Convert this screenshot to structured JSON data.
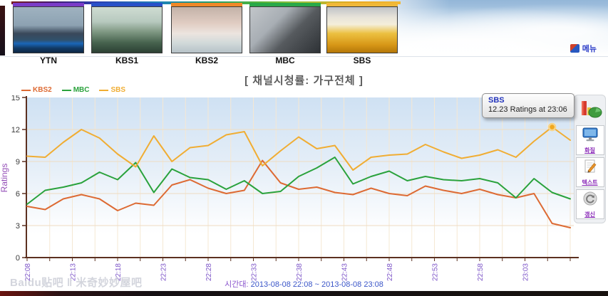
{
  "header": {
    "channels": [
      {
        "name": "YTN",
        "bar_color": "#7a3cc8"
      },
      {
        "name": "KBS1",
        "bar_color": "#2850c8"
      },
      {
        "name": "KBS2",
        "bar_color": "#f08828"
      },
      {
        "name": "MBC",
        "bar_color": "#28a848"
      },
      {
        "name": "SBS",
        "bar_color": "#f0b838"
      }
    ],
    "menu_label": "메뉴"
  },
  "title": "[ 채널시청률: 가구전체 ]",
  "chart_data": {
    "type": "line",
    "title": "채널시청률: 가구전체",
    "xlabel": "",
    "ylabel": "Ratings",
    "ylim": [
      0,
      15
    ],
    "yticks": [
      0,
      3,
      6,
      9,
      12,
      15
    ],
    "grid": true,
    "legend_position": "top-left",
    "x": [
      "22:08",
      "22:10",
      "22:12",
      "22:14",
      "22:16",
      "22:18",
      "22:20",
      "22:22",
      "22:24",
      "22:26",
      "22:28",
      "22:30",
      "22:32",
      "22:34",
      "22:36",
      "22:38",
      "22:40",
      "22:42",
      "22:44",
      "22:46",
      "22:48",
      "22:50",
      "22:52",
      "22:54",
      "22:56",
      "22:58",
      "23:00",
      "23:02",
      "23:04",
      "23:06",
      "23:08"
    ],
    "x_axis_labels": [
      "22:08",
      "22:13",
      "22:18",
      "22:23",
      "22:28",
      "22:33",
      "22:38",
      "22:43",
      "22:48",
      "22:53",
      "22:58",
      "23:03"
    ],
    "series": [
      {
        "name": "KBS2",
        "color": "#dd6a33",
        "values": [
          4.8,
          4.5,
          5.5,
          5.9,
          5.5,
          4.4,
          5.1,
          4.9,
          6.8,
          7.3,
          6.5,
          6.0,
          6.3,
          9.1,
          7.0,
          6.4,
          6.6,
          6.1,
          5.9,
          6.5,
          6.0,
          5.8,
          6.7,
          6.3,
          6.0,
          6.4,
          5.9,
          5.6,
          6.0,
          3.2,
          2.8
        ]
      },
      {
        "name": "MBC",
        "color": "#2aa23c",
        "values": [
          5.0,
          6.3,
          6.6,
          7.0,
          8.0,
          7.3,
          8.9,
          6.1,
          8.3,
          7.5,
          7.3,
          6.4,
          7.2,
          6.0,
          6.2,
          7.6,
          8.4,
          9.4,
          6.9,
          7.6,
          8.1,
          7.2,
          7.6,
          7.3,
          7.2,
          7.4,
          7.0,
          5.6,
          7.4,
          6.1,
          5.5
        ]
      },
      {
        "name": "SBS",
        "color": "#f0ad33",
        "values": [
          9.5,
          9.4,
          10.8,
          12.0,
          11.2,
          9.7,
          8.5,
          11.4,
          9.0,
          10.3,
          10.5,
          11.5,
          11.8,
          8.6,
          10.0,
          11.3,
          10.2,
          10.5,
          8.2,
          9.4,
          9.6,
          9.7,
          10.6,
          9.9,
          9.3,
          9.6,
          10.1,
          9.4,
          10.9,
          12.23,
          11.0
        ]
      }
    ],
    "highlight": {
      "series": "SBS",
      "x": "23:06",
      "value": 12.23
    }
  },
  "tooltip": {
    "channel": "SBS",
    "text": "12.23 Ratings at 23:06"
  },
  "sidebar": {
    "logo_icon": "chart-logo-icon",
    "buttons": [
      {
        "icon": "monitor-icon",
        "label": "화질"
      },
      {
        "icon": "text-icon",
        "label": "텍스트"
      },
      {
        "icon": "refresh-icon",
        "label": "갱신"
      }
    ]
  },
  "footer": {
    "time_range_label": "시간대:",
    "time_range_value": "2013-08-08 22:08 ~ 2013-08-08 23:08",
    "watermark": "Baidu贴吧 ‖ 米奇妙妙屋吧"
  },
  "colors": {
    "axis": "#5c3020",
    "grid_h": "#eedcc2",
    "grid_v": "#f5e8d3",
    "x_tick_label": "#7d55c8",
    "y_tick_label": "#3c3c3c",
    "y_axis_label": "#9550b8",
    "highlight_dot_fill": "#f0a820",
    "highlight_dot_ring": "#f8d488",
    "plot_bg_top": "#cfe1f3",
    "plot_bg_bottom": "#ffffff"
  }
}
